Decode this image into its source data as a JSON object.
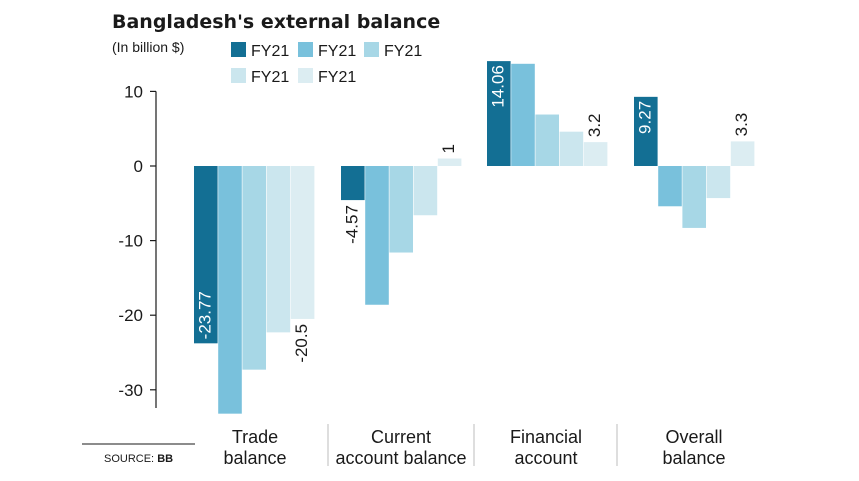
{
  "chart_data": {
    "type": "bar",
    "title": "Bangladesh's external balance",
    "subtitle": "(In billion $)",
    "source_label": "SOURCE:",
    "source_value": "BB",
    "categories": [
      [
        "Trade",
        "balance"
      ],
      [
        "Current",
        "account balance"
      ],
      [
        "Financial",
        "account"
      ],
      [
        "Overall",
        "balance"
      ]
    ],
    "series": [
      {
        "name": "FY21",
        "color": "#136f94",
        "values": [
          -23.77,
          -4.57,
          14.06,
          9.27
        ]
      },
      {
        "name": "FY21",
        "color": "#79c1dc",
        "values": [
          -33.2,
          -18.6,
          13.7,
          -5.4
        ]
      },
      {
        "name": "FY21",
        "color": "#a7d7e6",
        "values": [
          -27.3,
          -11.6,
          6.9,
          -8.3
        ]
      },
      {
        "name": "FY21",
        "color": "#cbe6ee",
        "values": [
          -22.3,
          -6.6,
          4.6,
          -4.3
        ]
      },
      {
        "name": "FY21",
        "color": "#dcedf2",
        "values": [
          -20.5,
          1,
          3.2,
          3.3
        ]
      }
    ],
    "data_labels": [
      {
        "category": 0,
        "series": 0,
        "text": "-23.77"
      },
      {
        "category": 0,
        "series": 4,
        "text": "-20.5"
      },
      {
        "category": 1,
        "series": 0,
        "text": "-4.57"
      },
      {
        "category": 1,
        "series": 4,
        "text": "1"
      },
      {
        "category": 2,
        "series": 0,
        "text": "14.06"
      },
      {
        "category": 2,
        "series": 4,
        "text": "3.2"
      },
      {
        "category": 3,
        "series": 0,
        "text": "9.27"
      },
      {
        "category": 3,
        "series": 4,
        "text": "3.3"
      }
    ],
    "y_ticks": [
      10,
      0,
      -10,
      -20,
      -30
    ],
    "ylim": [
      -34,
      14
    ],
    "grid": false,
    "legend_position": "top-left"
  }
}
